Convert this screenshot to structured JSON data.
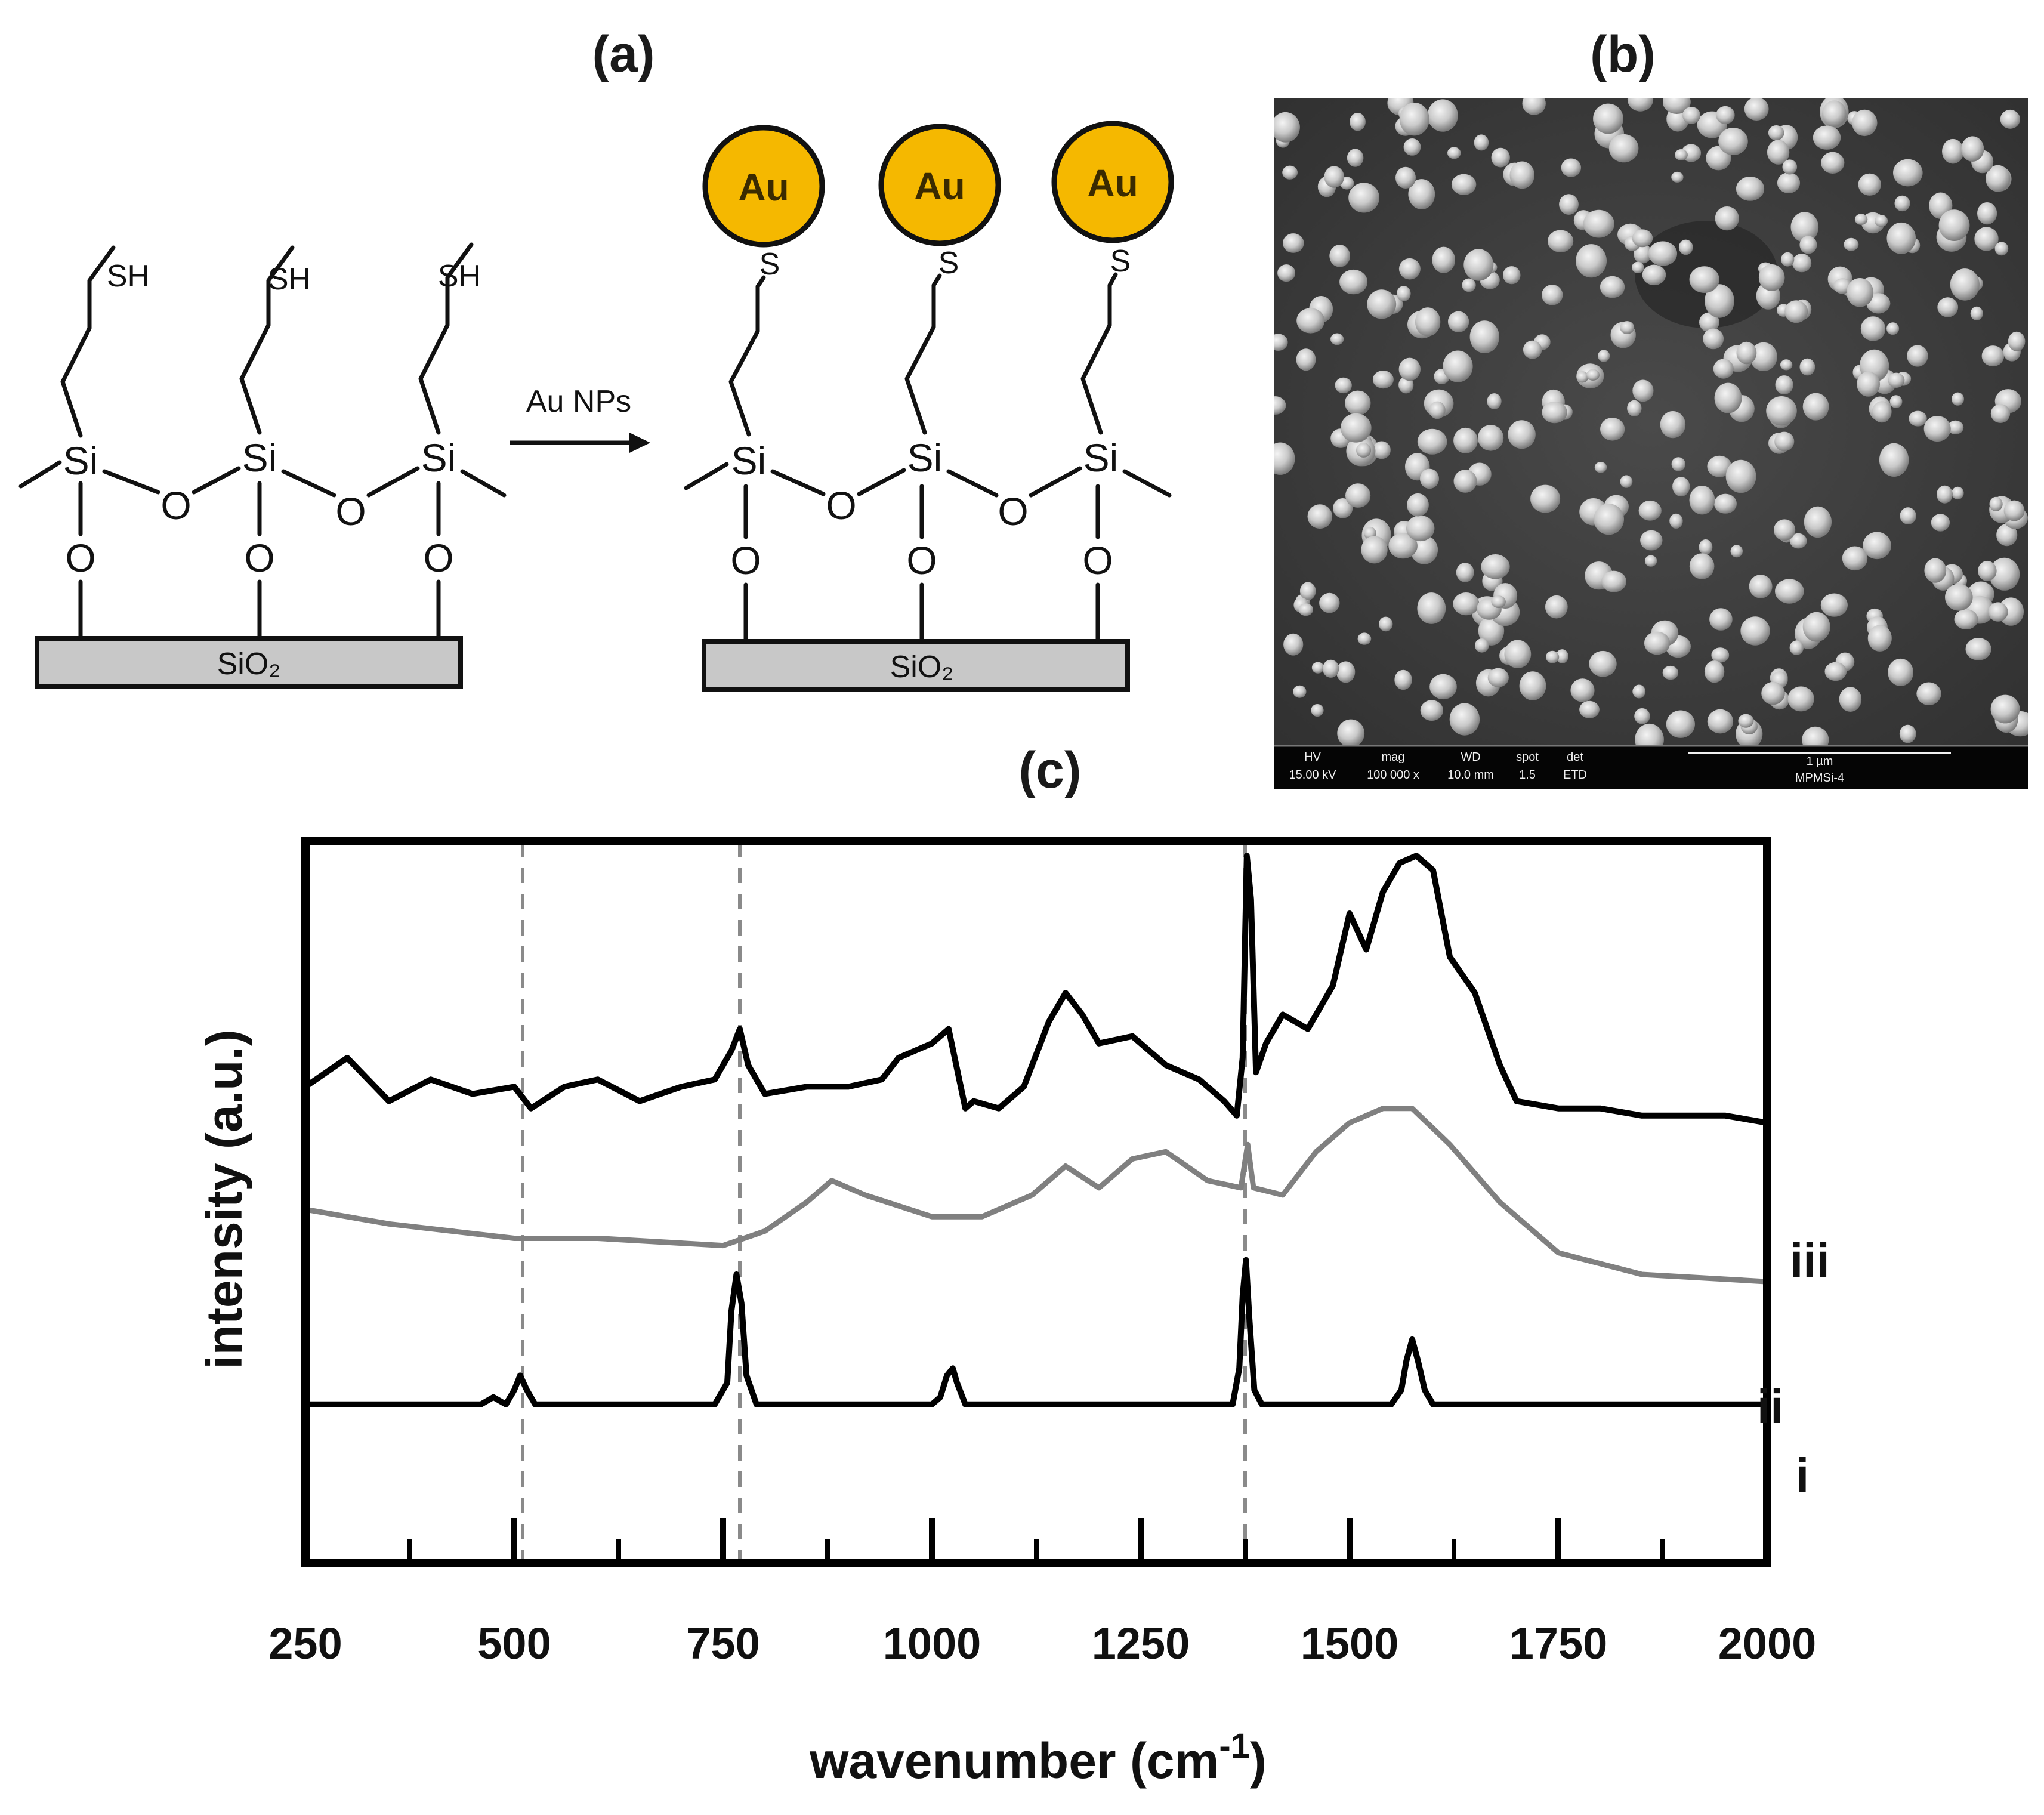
{
  "panels": {
    "a": "(a)",
    "b": "(b)",
    "c": "(c)"
  },
  "scheme": {
    "reaction_label": "Au NPs",
    "substrate": "SiO₂",
    "thiol": "SH",
    "sulfur": "S",
    "silicon": "Si",
    "oxygen": "O",
    "nanoparticle": "Au",
    "colors": {
      "gold": "#f5b800",
      "substrate": "#c8c8c8"
    }
  },
  "sem": {
    "info_headers": [
      "HV",
      "mag",
      "WD",
      "spot",
      "det"
    ],
    "info_values": [
      "15.00 kV",
      "100 000 x",
      "10.0 mm",
      "1.5",
      "ETD"
    ],
    "scale_bar": "1 µm",
    "sample_id": "MPMSi-4"
  },
  "chart_data": {
    "type": "line",
    "title": "",
    "xlabel": "wavenumber (cm",
    "xlabel_superscript": "-1",
    "xlabel_suffix": ")",
    "ylabel": "intensity (a.u.)",
    "xlim": [
      250,
      2000
    ],
    "ylim": [
      0,
      100
    ],
    "x_ticks": [
      "250",
      "500",
      "750",
      "1000",
      "1250",
      "1500",
      "1750",
      "2000"
    ],
    "reference_lines": [
      510,
      770,
      1375
    ],
    "series": [
      {
        "name": "i",
        "color": "#000000",
        "x": [
          250,
          460,
          475,
          490,
          500,
          507,
          515,
          525,
          545,
          740,
          755,
          760,
          766,
          772,
          778,
          790,
          1000,
          1010,
          1018,
          1025,
          1030,
          1040,
          1360,
          1368,
          1372,
          1376,
          1380,
          1386,
          1395,
          1550,
          1562,
          1568,
          1575,
          1582,
          1590,
          1600,
          2000
        ],
        "values": [
          22,
          22,
          23,
          22,
          24,
          26,
          24,
          22,
          22,
          22,
          25,
          35,
          40,
          36,
          26,
          22,
          22,
          23,
          26,
          27,
          25,
          22,
          22,
          27,
          37,
          42,
          34,
          24,
          22,
          22,
          24,
          28,
          31,
          28,
          24,
          22,
          22
        ]
      },
      {
        "name": "ii",
        "color": "#808080",
        "x": [
          250,
          350,
          500,
          600,
          750,
          800,
          850,
          880,
          920,
          1000,
          1060,
          1120,
          1160,
          1200,
          1240,
          1280,
          1330,
          1370,
          1378,
          1385,
          1420,
          1460,
          1500,
          1540,
          1575,
          1620,
          1680,
          1750,
          1850,
          2000
        ],
        "values": [
          49,
          47,
          45,
          45,
          44,
          46,
          50,
          53,
          51,
          48,
          48,
          51,
          55,
          52,
          56,
          57,
          53,
          52,
          58,
          52,
          51,
          57,
          61,
          63,
          63,
          58,
          50,
          43,
          40,
          39
        ]
      },
      {
        "name": "iii",
        "color": "#000000",
        "x": [
          250,
          300,
          350,
          400,
          450,
          500,
          520,
          560,
          600,
          650,
          700,
          740,
          760,
          770,
          780,
          800,
          850,
          900,
          940,
          960,
          1000,
          1020,
          1040,
          1050,
          1080,
          1110,
          1140,
          1160,
          1180,
          1200,
          1240,
          1280,
          1320,
          1350,
          1365,
          1372,
          1377,
          1382,
          1388,
          1400,
          1420,
          1450,
          1480,
          1500,
          1520,
          1540,
          1560,
          1580,
          1600,
          1620,
          1650,
          1680,
          1700,
          1750,
          1800,
          1850,
          1900,
          1950,
          2000
        ],
        "values": [
          66,
          70,
          64,
          67,
          65,
          66,
          63,
          66,
          67,
          64,
          66,
          67,
          71,
          74,
          69,
          65,
          66,
          66,
          67,
          70,
          72,
          74,
          63,
          64,
          63,
          66,
          75,
          79,
          76,
          72,
          73,
          69,
          67,
          64,
          62,
          70,
          98,
          92,
          68,
          72,
          76,
          74,
          80,
          90,
          85,
          93,
          97,
          98,
          96,
          84,
          79,
          69,
          64,
          63,
          63,
          62,
          62,
          62,
          61
        ]
      }
    ],
    "legend": "right-end labels"
  }
}
